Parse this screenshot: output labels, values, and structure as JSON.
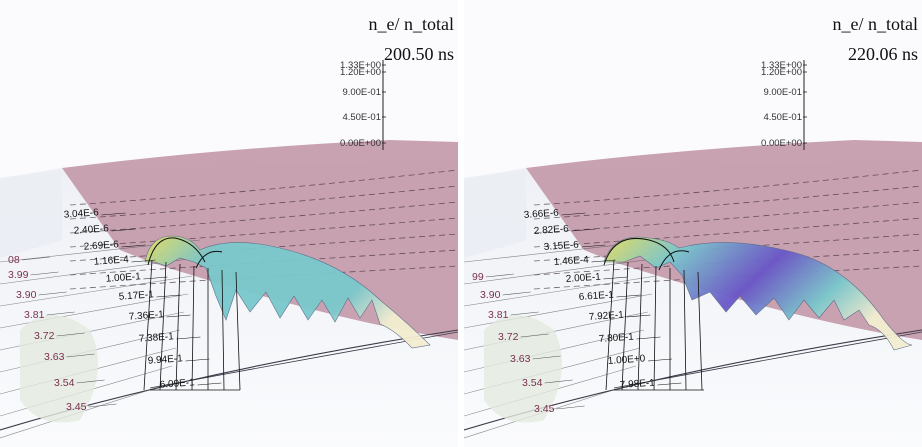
{
  "colors": {
    "plane": "#c49aaa",
    "plane_shadow": "#b58d9d",
    "floor": "#e9ecf2",
    "label_color": "#7a3050",
    "surface_cyan": "#79c8cc",
    "surface_purple": "#6a55c8",
    "surface_yellow": "#e6e060"
  },
  "panels": [
    {
      "variable": "n_e/ n_total",
      "time": "200.50 ns",
      "vertical_axis": [
        "1.33E+00",
        "1.20E+00",
        "9.00E-01",
        "4.50E-01",
        "0.00E+00"
      ],
      "radial_labels": [
        "3.04E-6",
        "2.40E-6",
        "2.69E-6",
        "1.16E-4",
        "1.00E-1",
        "5.17E-1",
        "7.36E-1",
        "7.38E-1",
        "9.94E-1",
        "6.09E-1"
      ],
      "edge_labels": [
        "08",
        "3.99",
        "3.90",
        "3.81",
        "3.72",
        "3.63",
        "3.54",
        "3.45"
      ]
    },
    {
      "variable": "n_e/ n_total",
      "time": "220.06 ns",
      "vertical_axis": [
        "1.33E+00",
        "1.20E+00",
        "9.00E-01",
        "4.50E-01",
        "0.00E+00"
      ],
      "radial_labels": [
        "3.66E-6",
        "2.82E-6",
        "3.15E-6",
        "1.46E-4",
        "2.00E-1",
        "6.61E-1",
        "7.92E-1",
        "7.80E-1",
        "1.00E+0",
        "7.98E-1"
      ],
      "edge_labels": [
        "99",
        "3.90",
        "3.81",
        "3.72",
        "3.63",
        "3.54",
        "3.45"
      ]
    }
  ]
}
